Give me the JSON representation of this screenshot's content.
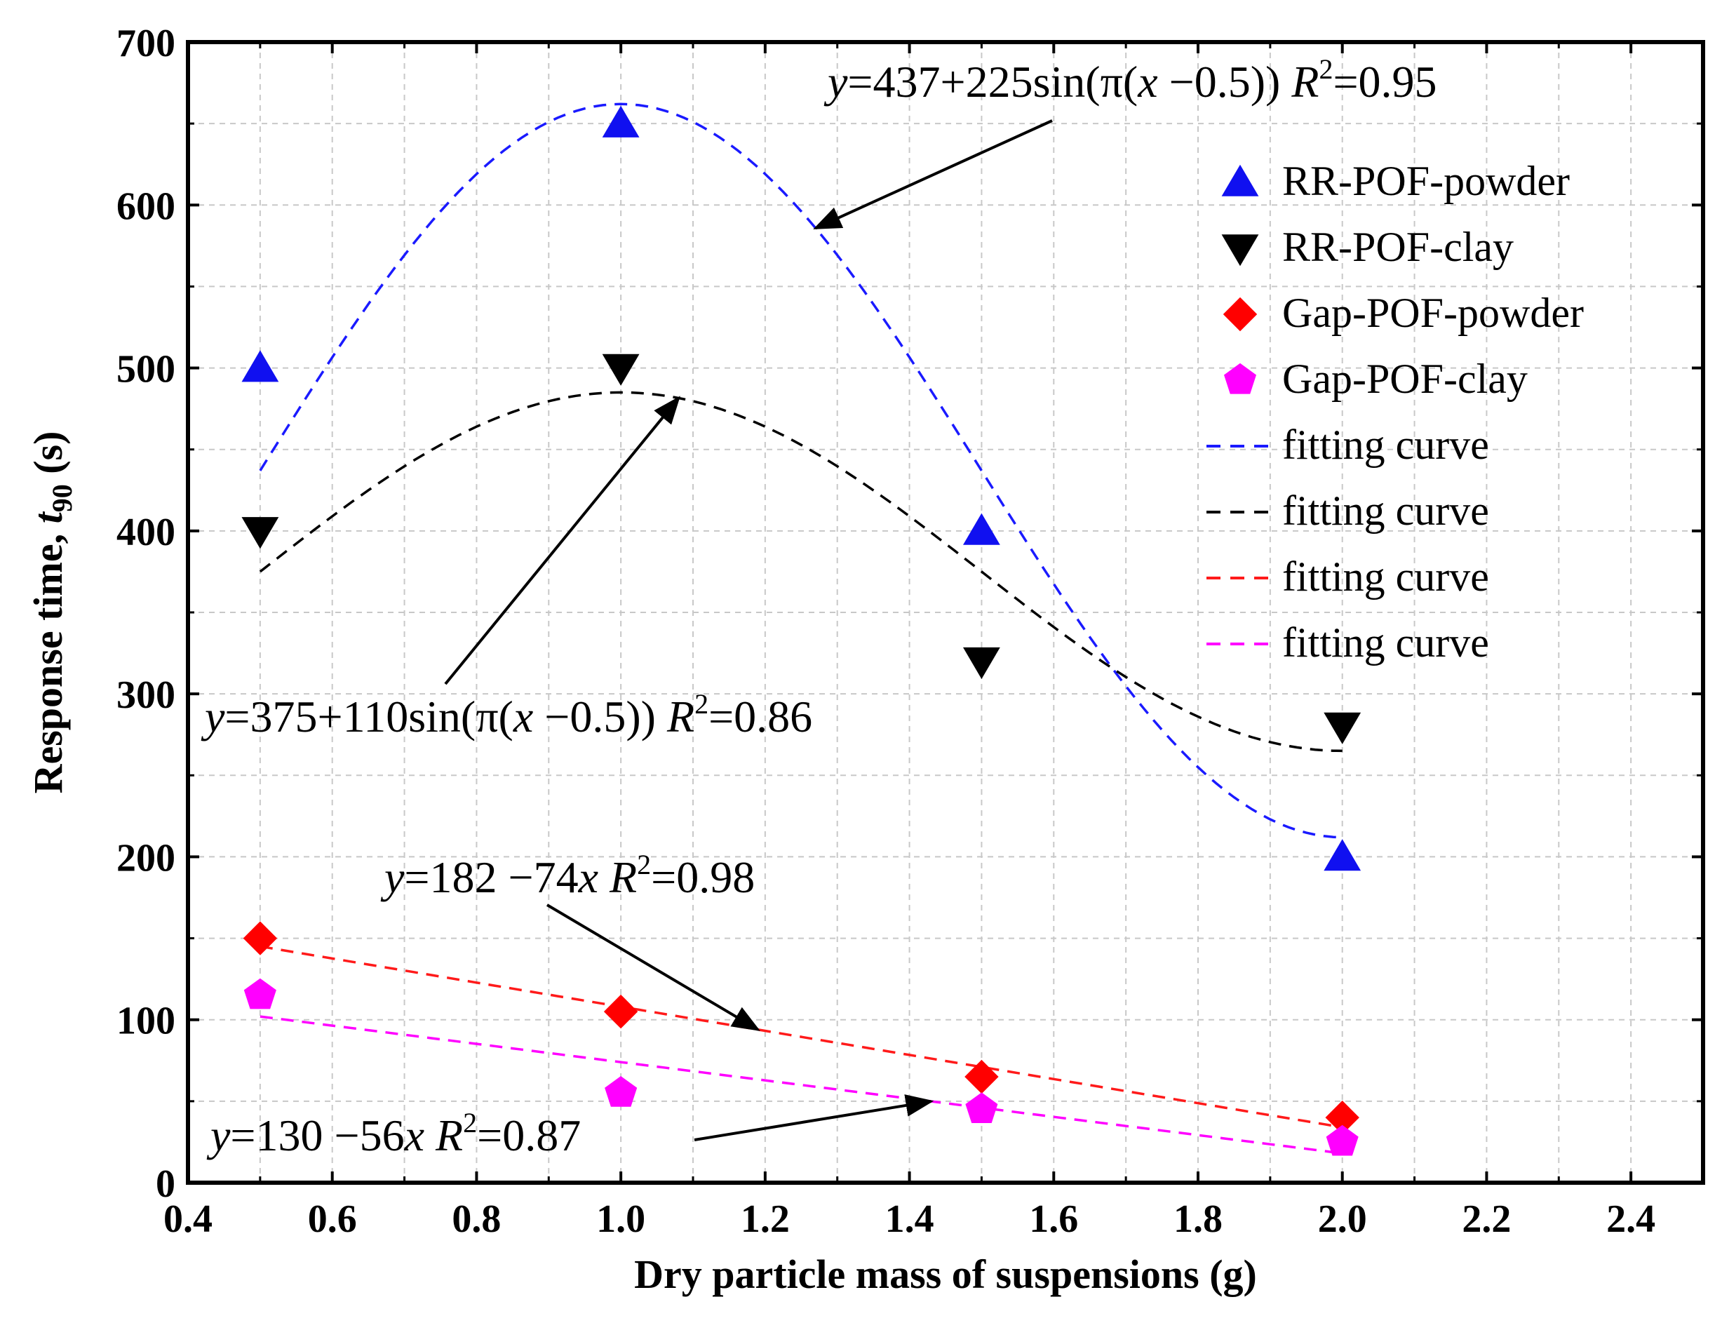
{
  "chart_data": {
    "type": "scatter",
    "xlabel": "Dry particle mass of suspensions (g)",
    "ylabel": "Response time, t90 (s)",
    "ylabel_parts": {
      "main": "Response time, ",
      "var": "t",
      "sub": "90",
      "unit": " (s)"
    },
    "xlim": [
      0.4,
      2.5
    ],
    "ylim": [
      0,
      700
    ],
    "xticks": [
      0.4,
      0.6,
      0.8,
      1.0,
      1.2,
      1.4,
      1.6,
      1.8,
      2.0,
      2.2,
      2.4
    ],
    "xtick_labels": [
      "0.4",
      "0.6",
      "0.8",
      "1.0",
      "1.2",
      "1.4",
      "1.6",
      "1.8",
      "2.0",
      "2.2",
      "2.4"
    ],
    "yticks": [
      0,
      100,
      200,
      300,
      400,
      500,
      600,
      700
    ],
    "ytick_labels": [
      "0",
      "100",
      "200",
      "300",
      "400",
      "500",
      "600",
      "700"
    ],
    "grid": true,
    "legend_position": "top-right",
    "series": [
      {
        "name": "RR-POF-powder",
        "marker": "triangle-up",
        "color": "#1010f0",
        "x": [
          0.5,
          1.0,
          1.5,
          2.0
        ],
        "y": [
          500,
          650,
          400,
          200
        ]
      },
      {
        "name": "RR-POF-clay",
        "marker": "triangle-down",
        "color": "#000000",
        "x": [
          0.5,
          1.0,
          1.5,
          2.0
        ],
        "y": [
          400,
          500,
          320,
          280
        ]
      },
      {
        "name": "Gap-POF-powder",
        "marker": "diamond",
        "color": "#ff0000",
        "x": [
          0.5,
          1.0,
          1.5,
          2.0
        ],
        "y": [
          150,
          105,
          65,
          40
        ]
      },
      {
        "name": "Gap-POF-clay",
        "marker": "pentagon",
        "color": "#ff00ff",
        "x": [
          0.5,
          1.0,
          1.5,
          2.0
        ],
        "y": [
          115,
          55,
          45,
          25
        ]
      }
    ],
    "fits": [
      {
        "name": "fitting curve",
        "color": "#1a1aff",
        "model": "sin",
        "a": 437,
        "b": 225,
        "x_range": [
          0.5,
          2.0
        ]
      },
      {
        "name": "fitting curve",
        "color": "#000000",
        "model": "sin",
        "a": 375,
        "b": 110,
        "x_range": [
          0.5,
          2.0
        ]
      },
      {
        "name": "fitting curve",
        "color": "#ff1a1a",
        "model": "linear",
        "a": 182,
        "b": -74,
        "x_range": [
          0.5,
          2.0
        ]
      },
      {
        "name": "fitting curve",
        "color": "#ff00ff",
        "model": "linear",
        "a": 130,
        "b": -56,
        "x_range": [
          0.5,
          2.0
        ]
      }
    ],
    "annotations": [
      {
        "id": "blue",
        "parts": [
          [
            "i",
            "y"
          ],
          [
            "n",
            "=437+225sin(π("
          ],
          [
            "i",
            "x"
          ],
          [
            "n",
            " −0.5))  "
          ],
          [
            "i",
            "R"
          ],
          [
            "s",
            "2"
          ],
          [
            "n",
            "=0.95"
          ]
        ]
      },
      {
        "id": "black",
        "parts": [
          [
            "i",
            "y"
          ],
          [
            "n",
            "=375+110sin(π("
          ],
          [
            "i",
            "x"
          ],
          [
            "n",
            " −0.5))  "
          ],
          [
            "i",
            "R"
          ],
          [
            "s",
            "2"
          ],
          [
            "n",
            "=0.86"
          ]
        ]
      },
      {
        "id": "red",
        "parts": [
          [
            "i",
            "y"
          ],
          [
            "n",
            "=182 −74"
          ],
          [
            "i",
            "x"
          ],
          [
            "n",
            "  "
          ],
          [
            "i",
            "R"
          ],
          [
            "s",
            "2"
          ],
          [
            "n",
            "=0.98"
          ]
        ]
      },
      {
        "id": "magenta",
        "parts": [
          [
            "i",
            "y"
          ],
          [
            "n",
            "=130 −56"
          ],
          [
            "i",
            "x"
          ],
          [
            "n",
            "  "
          ],
          [
            "i",
            "R"
          ],
          [
            "s",
            "2"
          ],
          [
            "n",
            "=0.87"
          ]
        ]
      }
    ]
  }
}
